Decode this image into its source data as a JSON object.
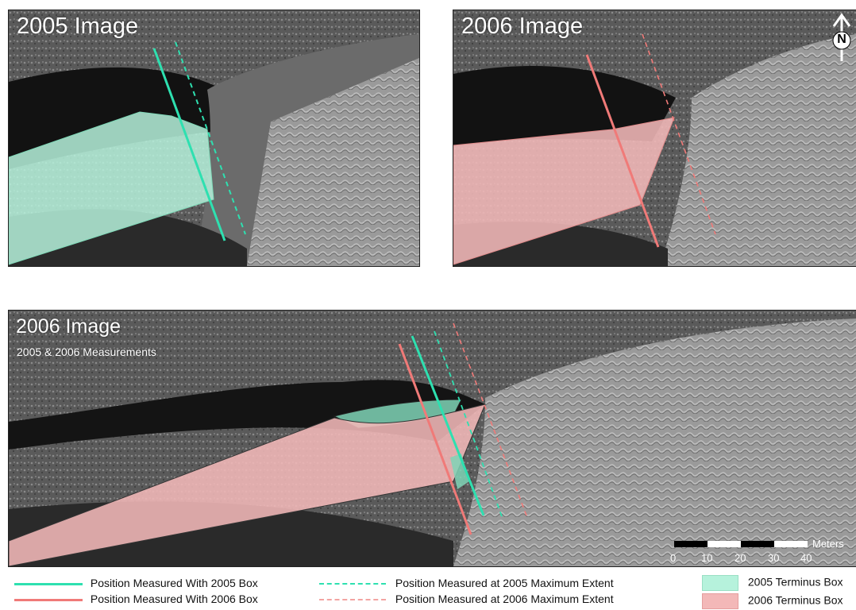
{
  "panels": {
    "top_left": {
      "title": "2005 Image"
    },
    "top_right": {
      "title": "2006 Image"
    },
    "bottom": {
      "title": "2006 Image",
      "subtitle": "2005 & 2006 Measurements"
    }
  },
  "north_arrow": {
    "letter": "N"
  },
  "scale_bar": {
    "unit": "Meters",
    "ticks": [
      "0",
      "10",
      "20",
      "30",
      "40"
    ]
  },
  "legend": {
    "line_2005_solid": "Position Measured With 2005 Box",
    "line_2006_solid": "Position Measured With 2006 Box",
    "line_2005_dashed": "Position Measured at 2005 Maximum Extent",
    "line_2006_dashed": "Position Measured at 2006 Maximum Extent",
    "box_2005": "2005 Terminus Box",
    "box_2006": "2006 Terminus Box"
  },
  "colors": {
    "measure_2005": "#2ee0b0",
    "measure_2006": "#f07a78",
    "box_2005_fill": "#b6f2dc",
    "box_2006_fill": "#f3b8b8"
  }
}
